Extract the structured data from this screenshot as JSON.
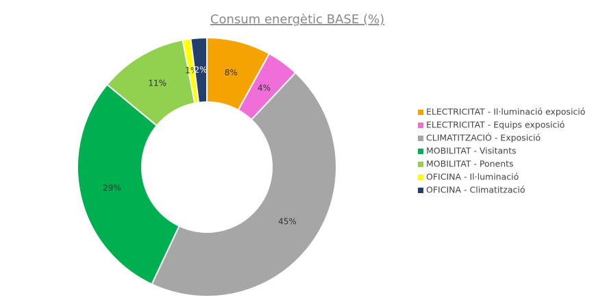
{
  "chart_data": {
    "type": "donut",
    "title": "Consum energètic BASE (%)",
    "categories": [
      "ELECTRICITAT - Il·luminació exposició",
      "ELECTRICITAT - Equips exposició",
      "CLIMATITZACIÓ - Exposició",
      "MOBILITAT - Visitants",
      "MOBILITAT - Ponents",
      "OFICINA - Il·luminació",
      "OFICINA - Climatització"
    ],
    "values": [
      8,
      4,
      45,
      29,
      11,
      1,
      2
    ],
    "value_labels": [
      "8%",
      "4%",
      "45%",
      "29%",
      "11%",
      "1%",
      "2%"
    ],
    "colors": [
      "#f4a300",
      "#f06ed8",
      "#a6a6a6",
      "#00b050",
      "#92d050",
      "#ffff00",
      "#243f6e"
    ],
    "legend": "right"
  }
}
